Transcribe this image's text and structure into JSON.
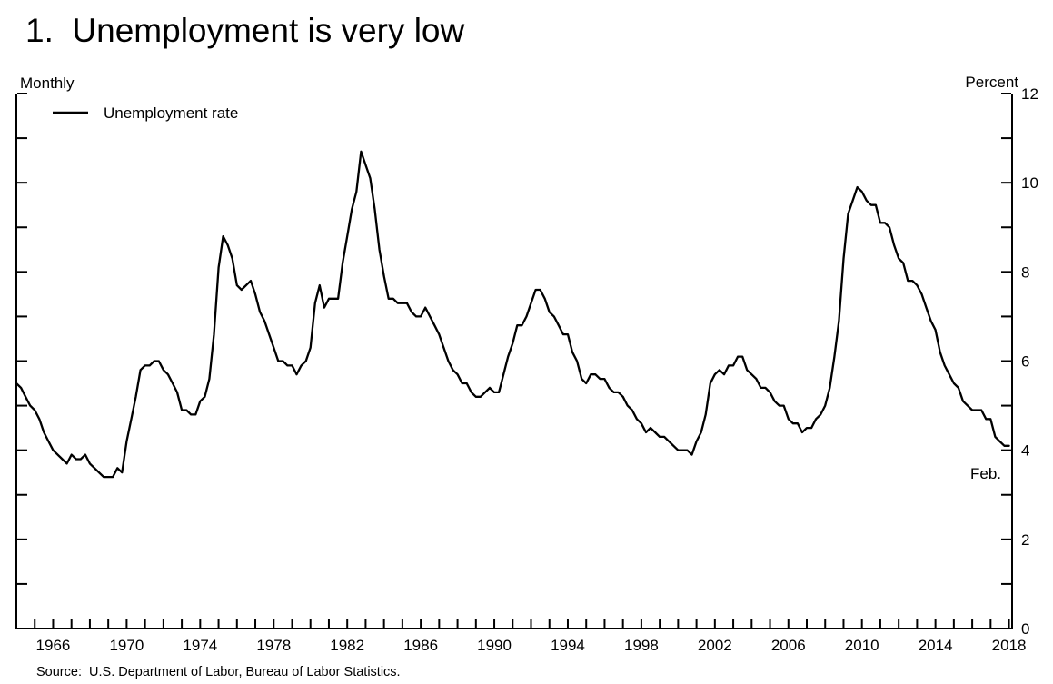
{
  "chart_data": {
    "type": "line",
    "title": "1.  Unemployment is very low",
    "frequency_label": "Monthly",
    "unit_label": "Percent",
    "last_point_annotation": "Feb.",
    "source": "Source:  U.S. Department of Labor, Bureau of Labor Statistics.",
    "line_color": "#000000",
    "grid": "off",
    "legend_position": "top-left-inside",
    "legend": [
      {
        "label": "Unemployment rate",
        "color": "#000000"
      }
    ],
    "x_axis": {
      "min": 1964.0,
      "max": 2018.17,
      "minor_tick_every_years": 1,
      "labeled_years": [
        1966,
        1970,
        1974,
        1978,
        1982,
        1986,
        1990,
        1994,
        1998,
        2002,
        2006,
        2010,
        2014,
        2018
      ]
    },
    "y_axis": {
      "min": 0,
      "max": 12,
      "minor_tick_every": 1,
      "labeled_values": [
        0,
        2,
        4,
        6,
        8,
        10,
        12
      ],
      "labels_side": "right"
    },
    "series": [
      {
        "name": "Unemployment rate",
        "color": "#000000",
        "x_start": 1964.0,
        "x_step_years": 0.25,
        "values": [
          5.5,
          5.4,
          5.2,
          5.0,
          4.9,
          4.7,
          4.4,
          4.2,
          4.0,
          3.9,
          3.8,
          3.7,
          3.9,
          3.8,
          3.8,
          3.9,
          3.7,
          3.6,
          3.5,
          3.4,
          3.4,
          3.4,
          3.6,
          3.5,
          4.2,
          4.7,
          5.2,
          5.8,
          5.9,
          5.9,
          6.0,
          6.0,
          5.8,
          5.7,
          5.5,
          5.3,
          4.9,
          4.9,
          4.8,
          4.8,
          5.1,
          5.2,
          5.6,
          6.6,
          8.1,
          8.8,
          8.6,
          8.3,
          7.7,
          7.6,
          7.7,
          7.8,
          7.5,
          7.1,
          6.9,
          6.6,
          6.3,
          6.0,
          6.0,
          5.9,
          5.9,
          5.7,
          5.9,
          6.0,
          6.3,
          7.3,
          7.7,
          7.2,
          7.4,
          7.4,
          7.4,
          8.2,
          8.8,
          9.4,
          9.8,
          10.7,
          10.4,
          10.1,
          9.4,
          8.5,
          7.9,
          7.4,
          7.4,
          7.3,
          7.3,
          7.3,
          7.1,
          7.0,
          7.0,
          7.2,
          7.0,
          6.8,
          6.6,
          6.3,
          6.0,
          5.8,
          5.7,
          5.5,
          5.5,
          5.3,
          5.2,
          5.2,
          5.3,
          5.4,
          5.3,
          5.3,
          5.7,
          6.1,
          6.4,
          6.8,
          6.8,
          7.0,
          7.3,
          7.6,
          7.6,
          7.4,
          7.1,
          7.0,
          6.8,
          6.6,
          6.6,
          6.2,
          6.0,
          5.6,
          5.5,
          5.7,
          5.7,
          5.6,
          5.6,
          5.4,
          5.3,
          5.3,
          5.2,
          5.0,
          4.9,
          4.7,
          4.6,
          4.4,
          4.5,
          4.4,
          4.3,
          4.3,
          4.2,
          4.1,
          4.0,
          4.0,
          4.0,
          3.9,
          4.2,
          4.4,
          4.8,
          5.5,
          5.7,
          5.8,
          5.7,
          5.9,
          5.9,
          6.1,
          6.1,
          5.8,
          5.7,
          5.6,
          5.4,
          5.4,
          5.3,
          5.1,
          5.0,
          5.0,
          4.7,
          4.6,
          4.6,
          4.4,
          4.5,
          4.5,
          4.7,
          4.8,
          5.0,
          5.4,
          6.1,
          6.9,
          8.3,
          9.3,
          9.6,
          9.9,
          9.8,
          9.6,
          9.5,
          9.5,
          9.1,
          9.1,
          9.0,
          8.6,
          8.3,
          8.2,
          7.8,
          7.8,
          7.7,
          7.5,
          7.2,
          6.9,
          6.7,
          6.2,
          5.9,
          5.7,
          5.5,
          5.4,
          5.1,
          5.0,
          4.9,
          4.9,
          4.9,
          4.7,
          4.7,
          4.3,
          4.2,
          4.1,
          4.1
        ],
        "last_observation": {
          "x": 2018.083,
          "label": "Feb.",
          "value": 4.1
        }
      }
    ]
  }
}
